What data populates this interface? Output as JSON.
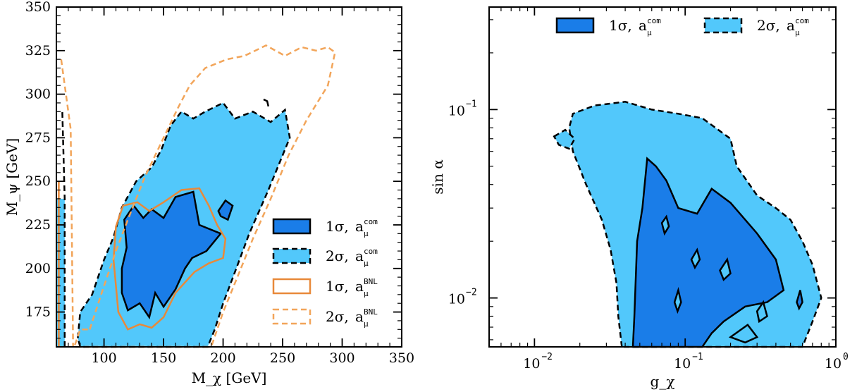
{
  "colors": {
    "one_sigma_fill": "#1a7de8",
    "two_sigma_fill": "#52c8fb",
    "bnl_line": "#e8893a",
    "bnl_dashed": "#f2a55a",
    "line": "#000000"
  },
  "chart_data": [
    {
      "type": "area",
      "xlabel": "M_χ [GeV]",
      "ylabel": "M_ψ [GeV]",
      "xlim": [
        60,
        350
      ],
      "ylim": [
        155,
        350
      ],
      "xticks": [
        "100",
        "150",
        "200",
        "250",
        "300",
        "350"
      ],
      "yticks": [
        "175",
        "200",
        "225",
        "250",
        "275",
        "300",
        "325",
        "350"
      ],
      "legend_placement": "lower-right",
      "series": [
        {
          "name": "1σ, a_μ^com",
          "style": "filled-solid",
          "points": [
            [
              115,
              200
            ],
            [
              119,
              212
            ],
            [
              117,
              228
            ],
            [
              125,
              236
            ],
            [
              133,
              229
            ],
            [
              140,
              234
            ],
            [
              150,
              229
            ],
            [
              160,
              241
            ],
            [
              175,
              244
            ],
            [
              180,
              225
            ],
            [
              198,
              220
            ],
            [
              186,
              210
            ],
            [
              174,
              206
            ],
            [
              168,
              200
            ],
            [
              160,
              188
            ],
            [
              150,
              178
            ],
            [
              143,
              186
            ],
            [
              138,
              172
            ],
            [
              130,
              180
            ],
            [
              120,
              176
            ],
            [
              115,
              186
            ]
          ]
        },
        {
          "name": "2σ, a_μ^com",
          "style": "filled-dashed",
          "points": [
            [
              78,
              160
            ],
            [
              80,
              175
            ],
            [
              90,
              185
            ],
            [
              100,
              205
            ],
            [
              108,
              218
            ],
            [
              115,
              235
            ],
            [
              127,
              250
            ],
            [
              140,
              258
            ],
            [
              148,
              268
            ],
            [
              156,
              282
            ],
            [
              165,
              290
            ],
            [
              175,
              286
            ],
            [
              185,
              290
            ],
            [
              200,
              295
            ],
            [
              210,
              286
            ],
            [
              225,
              290
            ],
            [
              240,
              284
            ],
            [
              252,
              291
            ],
            [
              256,
              275
            ],
            [
              238,
              245
            ],
            [
              222,
              220
            ],
            [
              210,
              198
            ],
            [
              200,
              180
            ],
            [
              193,
              165
            ],
            [
              187,
              155
            ],
            [
              80,
              155
            ]
          ]
        },
        {
          "name": "1σ, a_μ^BNL",
          "style": "solid",
          "points": [
            [
              108,
              205
            ],
            [
              110,
              224
            ],
            [
              116,
              236
            ],
            [
              128,
              238
            ],
            [
              138,
              233
            ],
            [
              150,
              238
            ],
            [
              165,
              245
            ],
            [
              180,
              246
            ],
            [
              188,
              236
            ],
            [
              195,
              225
            ],
            [
              202,
              217
            ],
            [
              200,
              206
            ],
            [
              188,
              203
            ],
            [
              176,
              198
            ],
            [
              160,
              186
            ],
            [
              150,
              172
            ],
            [
              140,
              166
            ],
            [
              130,
              168
            ],
            [
              120,
              165
            ],
            [
              112,
              175
            ],
            [
              110,
              190
            ]
          ]
        },
        {
          "name": "2σ, a_μ^BNL",
          "style": "dashed",
          "points": [
            [
              88,
              165
            ],
            [
              100,
              190
            ],
            [
              110,
              210
            ],
            [
              120,
              228
            ],
            [
              134,
              252
            ],
            [
              150,
              275
            ],
            [
              162,
              292
            ],
            [
              172,
              305
            ],
            [
              185,
              315
            ],
            [
              203,
              320
            ],
            [
              218,
              322
            ],
            [
              236,
              328
            ],
            [
              252,
              322
            ],
            [
              266,
              327
            ],
            [
              278,
              325
            ],
            [
              288,
              327
            ],
            [
              294,
              324
            ],
            [
              288,
              305
            ],
            [
              270,
              285
            ],
            [
              255,
              265
            ],
            [
              240,
              240
            ],
            [
              225,
              217
            ],
            [
              212,
              195
            ],
            [
              200,
              175
            ],
            [
              190,
              155
            ],
            [
              75,
              155
            ],
            [
              80,
              165
            ]
          ]
        }
      ]
    },
    {
      "type": "area",
      "xlabel": "g_χ",
      "ylabel": "sin α",
      "xscale": "log",
      "yscale": "log",
      "xlim": [
        0.005,
        1.0
      ],
      "ylim": [
        0.0055,
        0.35
      ],
      "xticks": [
        "10^-2",
        "10^-1",
        "10^0"
      ],
      "yticks": [
        "10^-2",
        "10^-1"
      ],
      "legend_placement": "top",
      "series": [
        {
          "name": "1σ, a_μ^com",
          "style": "filled-solid",
          "points": [
            [
              0.045,
              0.0055
            ],
            [
              0.046,
              0.008
            ],
            [
              0.048,
              0.02
            ],
            [
              0.052,
              0.03
            ],
            [
              0.056,
              0.055
            ],
            [
              0.064,
              0.05
            ],
            [
              0.075,
              0.042
            ],
            [
              0.09,
              0.03
            ],
            [
              0.12,
              0.028
            ],
            [
              0.15,
              0.038
            ],
            [
              0.2,
              0.032
            ],
            [
              0.3,
              0.022
            ],
            [
              0.4,
              0.016
            ],
            [
              0.45,
              0.011
            ],
            [
              0.35,
              0.0095
            ],
            [
              0.25,
              0.009
            ],
            [
              0.18,
              0.0075
            ],
            [
              0.15,
              0.0065
            ],
            [
              0.13,
              0.0055
            ]
          ]
        },
        {
          "name": "2σ, a_μ^com",
          "style": "filled-dashed",
          "points": [
            [
              0.038,
              0.0055
            ],
            [
              0.036,
              0.008
            ],
            [
              0.035,
              0.012
            ],
            [
              0.032,
              0.018
            ],
            [
              0.028,
              0.026
            ],
            [
              0.022,
              0.04
            ],
            [
              0.018,
              0.06
            ],
            [
              0.017,
              0.08
            ],
            [
              0.018,
              0.095
            ],
            [
              0.025,
              0.105
            ],
            [
              0.04,
              0.11
            ],
            [
              0.06,
              0.1
            ],
            [
              0.09,
              0.095
            ],
            [
              0.13,
              0.09
            ],
            [
              0.2,
              0.07
            ],
            [
              0.22,
              0.05
            ],
            [
              0.3,
              0.035
            ],
            [
              0.4,
              0.03
            ],
            [
              0.5,
              0.026
            ],
            [
              0.6,
              0.02
            ],
            [
              0.7,
              0.015
            ],
            [
              0.8,
              0.01
            ],
            [
              0.7,
              0.0075
            ],
            [
              0.6,
              0.0055
            ]
          ]
        }
      ]
    }
  ],
  "legend": {
    "items": [
      {
        "sym": "1σ,",
        "sub": "com"
      },
      {
        "sym": "2σ,",
        "sub": "com"
      },
      {
        "sym": "1σ,",
        "sub": "BNL"
      },
      {
        "sym": "2σ,",
        "sub": "BNL"
      }
    ]
  }
}
